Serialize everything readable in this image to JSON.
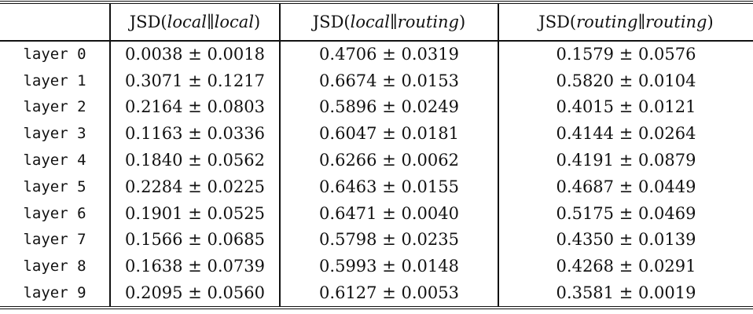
{
  "table": {
    "corner_label": "",
    "plus_minus": "±",
    "columns": [
      {
        "prefix": "JSD(",
        "left": "local",
        "separator": "∥",
        "right": "local",
        "suffix": ")"
      },
      {
        "prefix": "JSD(",
        "left": "local",
        "separator": "∥",
        "right": "routing",
        "suffix": ")"
      },
      {
        "prefix": "JSD(",
        "left": "routing",
        "separator": "∥",
        "right": "routing",
        "suffix": ")"
      }
    ]
  },
  "chart_data": {
    "type": "table",
    "column_headers": [
      "",
      "JSD(local∥local)",
      "JSD(local∥routing)",
      "JSD(routing∥routing)"
    ],
    "value_format": "mean ± std",
    "rows": [
      {
        "label": "layer 0",
        "values": [
          {
            "mean": "0.0038",
            "std": "0.0018"
          },
          {
            "mean": "0.4706",
            "std": "0.0319"
          },
          {
            "mean": "0.1579",
            "std": "0.0576"
          }
        ]
      },
      {
        "label": "layer 1",
        "values": [
          {
            "mean": "0.3071",
            "std": "0.1217"
          },
          {
            "mean": "0.6674",
            "std": "0.0153"
          },
          {
            "mean": "0.5820",
            "std": "0.0104"
          }
        ]
      },
      {
        "label": "layer 2",
        "values": [
          {
            "mean": "0.2164",
            "std": "0.0803"
          },
          {
            "mean": "0.5896",
            "std": "0.0249"
          },
          {
            "mean": "0.4015",
            "std": "0.0121"
          }
        ]
      },
      {
        "label": "layer 3",
        "values": [
          {
            "mean": "0.1163",
            "std": "0.0336"
          },
          {
            "mean": "0.6047",
            "std": "0.0181"
          },
          {
            "mean": "0.4144",
            "std": "0.0264"
          }
        ]
      },
      {
        "label": "layer 4",
        "values": [
          {
            "mean": "0.1840",
            "std": "0.0562"
          },
          {
            "mean": "0.6266",
            "std": "0.0062"
          },
          {
            "mean": "0.4191",
            "std": "0.0879"
          }
        ]
      },
      {
        "label": "layer 5",
        "values": [
          {
            "mean": "0.2284",
            "std": "0.0225"
          },
          {
            "mean": "0.6463",
            "std": "0.0155"
          },
          {
            "mean": "0.4687",
            "std": "0.0449"
          }
        ]
      },
      {
        "label": "layer 6",
        "values": [
          {
            "mean": "0.1901",
            "std": "0.0525"
          },
          {
            "mean": "0.6471",
            "std": "0.0040"
          },
          {
            "mean": "0.5175",
            "std": "0.0469"
          }
        ]
      },
      {
        "label": "layer 7",
        "values": [
          {
            "mean": "0.1566",
            "std": "0.0685"
          },
          {
            "mean": "0.5798",
            "std": "0.0235"
          },
          {
            "mean": "0.4350",
            "std": "0.0139"
          }
        ]
      },
      {
        "label": "layer 8",
        "values": [
          {
            "mean": "0.1638",
            "std": "0.0739"
          },
          {
            "mean": "0.5993",
            "std": "0.0148"
          },
          {
            "mean": "0.4268",
            "std": "0.0291"
          }
        ]
      },
      {
        "label": "layer 9",
        "values": [
          {
            "mean": "0.2095",
            "std": "0.0560"
          },
          {
            "mean": "0.6127",
            "std": "0.0053"
          },
          {
            "mean": "0.3581",
            "std": "0.0019"
          }
        ]
      }
    ]
  },
  "colors": {
    "text": "#111111",
    "rule": "#111111",
    "background": "#ffffff"
  }
}
